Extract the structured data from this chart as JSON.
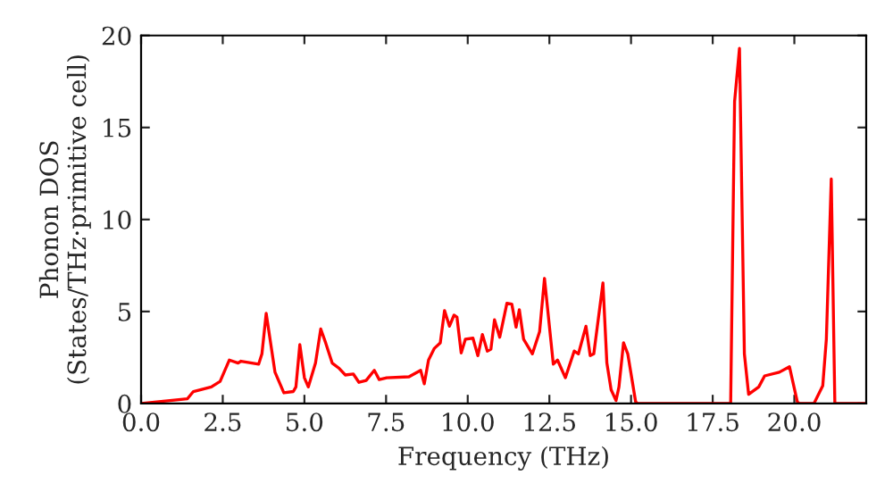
{
  "chart_data": {
    "type": "line",
    "xlabel": "Frequency (THz)",
    "ylabel": "Phonon DOS\n(States/THz·primitive cell)",
    "xlim": [
      0,
      22.2
    ],
    "ylim": [
      0,
      20
    ],
    "xticks": [
      {
        "value": 0,
        "label": "0.0"
      },
      {
        "value": 2.5,
        "label": "2.5"
      },
      {
        "value": 5,
        "label": "5.0"
      },
      {
        "value": 7.5,
        "label": "7.5"
      },
      {
        "value": 10,
        "label": "10.0"
      },
      {
        "value": 12.5,
        "label": "12.5"
      },
      {
        "value": 15,
        "label": "15.0"
      },
      {
        "value": 17.5,
        "label": "17.5"
      },
      {
        "value": 20,
        "label": "20.0"
      }
    ],
    "yticks": [
      0,
      5,
      10,
      15,
      20
    ],
    "grid": false,
    "marker": "none",
    "line_style": "solid",
    "series": [
      {
        "color": "#ff0000",
        "x": [
          0,
          1.42,
          1.6,
          2.15,
          2.42,
          2.7,
          2.97,
          3.06,
          3.6,
          3.7,
          3.83,
          4.1,
          4.37,
          4.66,
          4.74,
          4.86,
          5.0,
          5.12,
          5.34,
          5.5,
          5.65,
          5.85,
          6.07,
          6.25,
          6.5,
          6.67,
          6.89,
          7.14,
          7.29,
          7.52,
          8.2,
          8.56,
          8.67,
          8.8,
          8.98,
          9.16,
          9.29,
          9.44,
          9.58,
          9.67,
          9.8,
          9.93,
          10.16,
          10.31,
          10.45,
          10.6,
          10.71,
          10.82,
          10.98,
          11.2,
          11.35,
          11.48,
          11.58,
          11.71,
          11.98,
          12.2,
          12.35,
          12.62,
          12.75,
          12.99,
          13.26,
          13.39,
          13.62,
          13.75,
          13.86,
          14.14,
          14.26,
          14.39,
          14.54,
          14.63,
          14.77,
          14.9,
          15.14,
          15.2,
          18.05,
          18.17,
          18.32,
          18.47,
          18.6,
          18.91,
          19.09,
          19.54,
          19.85,
          20.09,
          20.15,
          20.6,
          20.87,
          20.98,
          21.13,
          21.24,
          22.18
        ],
        "values": [
          0,
          0.26,
          0.65,
          0.9,
          1.2,
          2.36,
          2.2,
          2.3,
          2.14,
          2.7,
          4.9,
          1.7,
          0.58,
          0.65,
          0.9,
          3.2,
          1.4,
          0.9,
          2.2,
          4.05,
          3.3,
          2.2,
          1.9,
          1.55,
          1.6,
          1.15,
          1.25,
          1.8,
          1.3,
          1.4,
          1.45,
          1.8,
          1.07,
          2.36,
          3.0,
          3.3,
          5.05,
          4.2,
          4.8,
          4.7,
          2.75,
          3.5,
          3.55,
          2.6,
          3.75,
          2.85,
          2.95,
          4.55,
          3.6,
          5.45,
          5.4,
          4.15,
          5.1,
          3.5,
          2.7,
          3.9,
          6.8,
          2.14,
          2.36,
          1.4,
          2.85,
          2.7,
          4.2,
          2.6,
          2.7,
          6.55,
          2.2,
          0.75,
          0.16,
          0.9,
          3.3,
          2.7,
          0.1,
          0,
          0,
          16.4,
          19.3,
          2.7,
          0.5,
          0.9,
          1.5,
          1.7,
          2.0,
          0.1,
          0,
          0,
          0.97,
          3.5,
          12.2,
          0,
          0
        ]
      }
    ]
  }
}
